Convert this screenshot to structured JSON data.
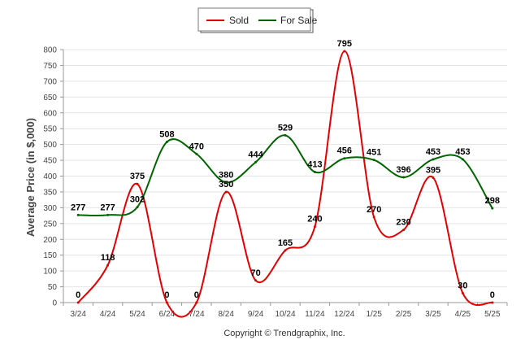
{
  "chart_data": {
    "type": "line",
    "categories": [
      "3/24",
      "4/24",
      "5/24",
      "6/24",
      "7/24",
      "8/24",
      "9/24",
      "10/24",
      "11/24",
      "12/24",
      "1/25",
      "2/25",
      "3/25",
      "4/25",
      "5/25"
    ],
    "series": [
      {
        "name": "Sold",
        "color": "#e30000",
        "values": [
          0,
          118,
          375,
          0,
          0,
          350,
          70,
          165,
          240,
          795,
          270,
          230,
          395,
          30,
          0
        ]
      },
      {
        "name": "For Sale",
        "color": "#006400",
        "values": [
          277,
          277,
          302,
          508,
          470,
          380,
          444,
          529,
          413,
          456,
          451,
          396,
          453,
          453,
          298
        ]
      }
    ],
    "ylabel": "Average Price (in $,000)",
    "ylim": [
      0,
      800
    ],
    "yticks": [
      0,
      50,
      100,
      150,
      200,
      250,
      300,
      350,
      400,
      450,
      500,
      550,
      600,
      650,
      700,
      750,
      800
    ],
    "grid": true,
    "legend_position": "top-center",
    "footer": "Copyright © Trendgraphix, Inc."
  }
}
